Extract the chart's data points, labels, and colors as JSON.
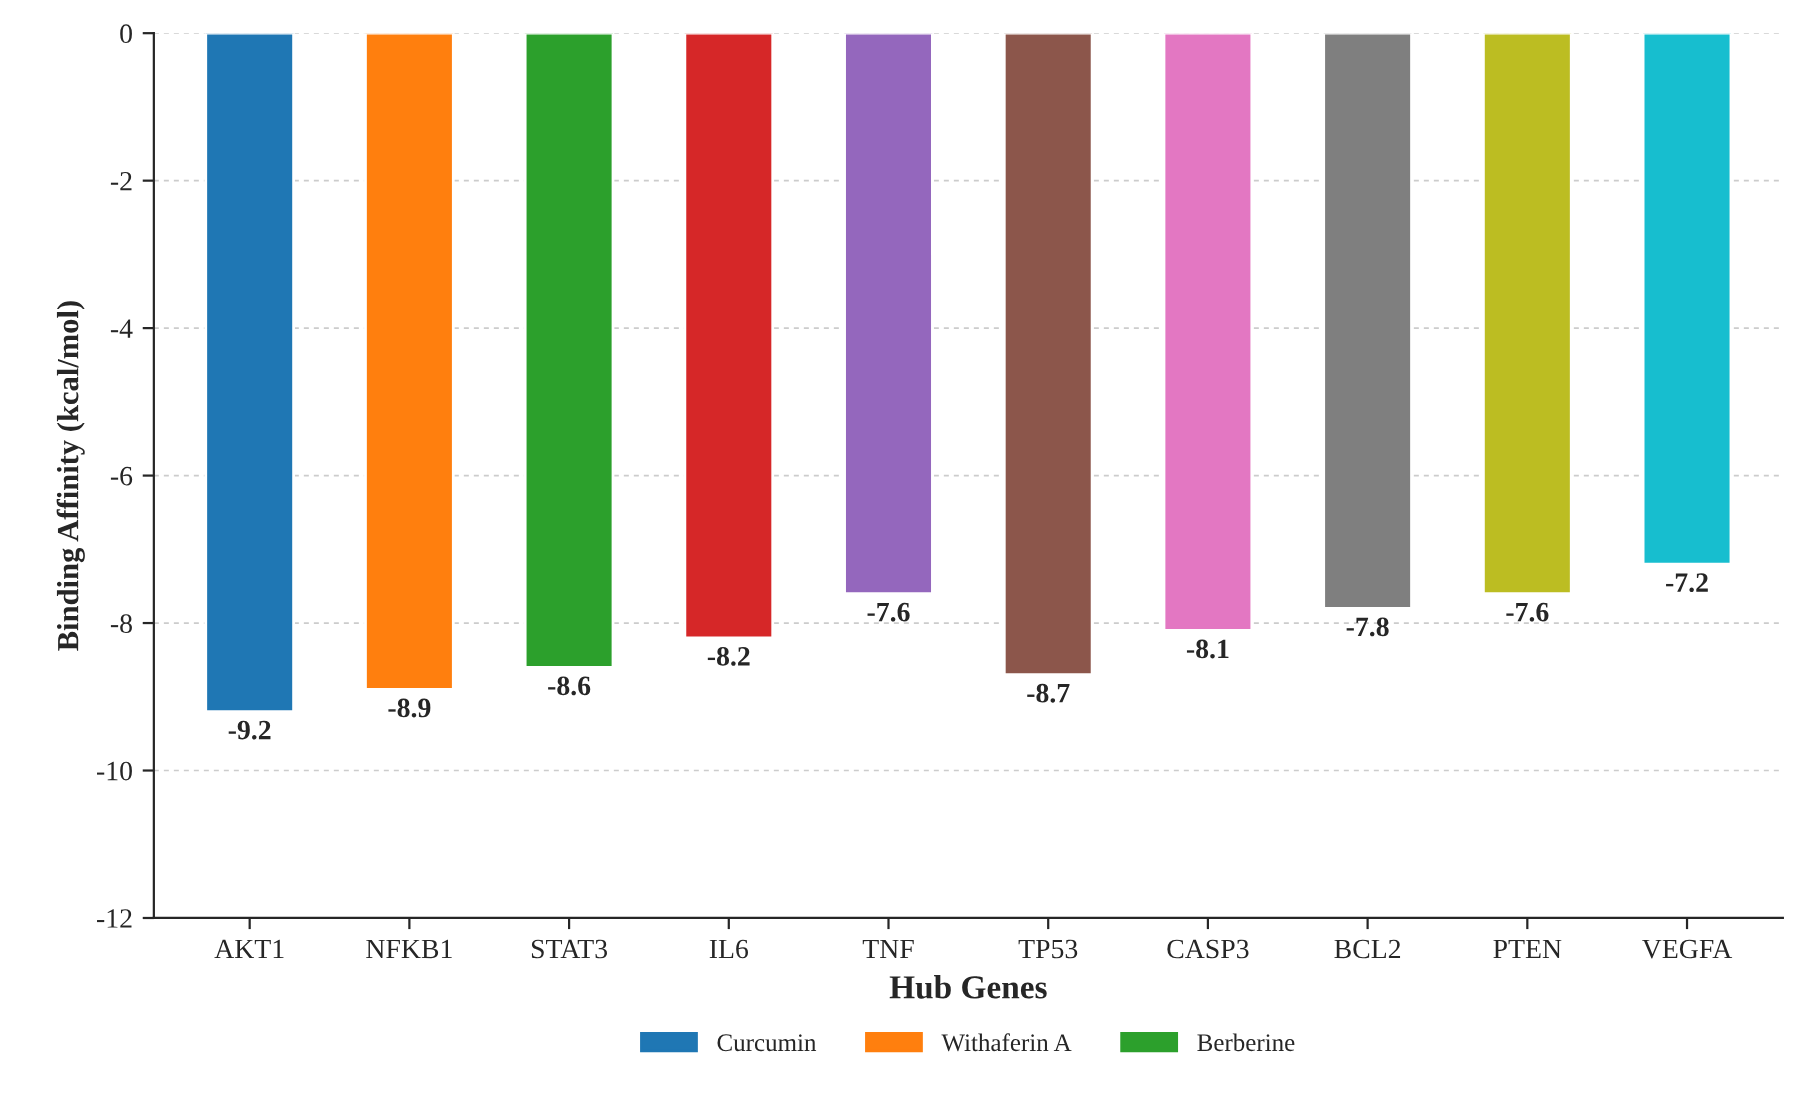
{
  "chart_data": {
    "type": "bar",
    "xlabel": "Hub Genes",
    "ylabel": "Binding Affinity (kcal/mol)",
    "categories": [
      "AKT1",
      "NFKB1",
      "STAT3",
      "IL6",
      "TNF",
      "TP53",
      "CASP3",
      "BCL2",
      "PTEN",
      "VEGFA"
    ],
    "series": [
      {
        "name": "Curcumin",
        "color": "#1f77b4",
        "values": [
          -9.2,
          null,
          null,
          null,
          null,
          null,
          null,
          null,
          null,
          null
        ]
      },
      {
        "name": "Withaferin A",
        "color": "#ff7f0e",
        "values": [
          null,
          -8.9,
          null,
          null,
          null,
          null,
          null,
          null,
          null,
          null
        ]
      },
      {
        "name": "Berberine",
        "color": "#2ca02c",
        "values": [
          null,
          null,
          -8.6,
          null,
          null,
          null,
          null,
          null,
          null,
          null
        ]
      },
      {
        "colors": [
          null,
          null,
          null,
          "#d62728",
          "#9467bd",
          "#8c564b",
          "#e377c2",
          "#7f7f7f",
          "#bcbd22",
          "#17becf"
        ],
        "values": [
          null,
          null,
          null,
          -8.2,
          -7.6,
          -8.7,
          -8.1,
          -7.8,
          -7.6,
          -7.2
        ]
      }
    ],
    "ylim": [
      -12,
      0
    ],
    "yticks": [
      -12,
      -10,
      -8,
      -6,
      -4,
      -2,
      0
    ],
    "grid": "y",
    "legend": "bottom",
    "data_labels": true
  }
}
